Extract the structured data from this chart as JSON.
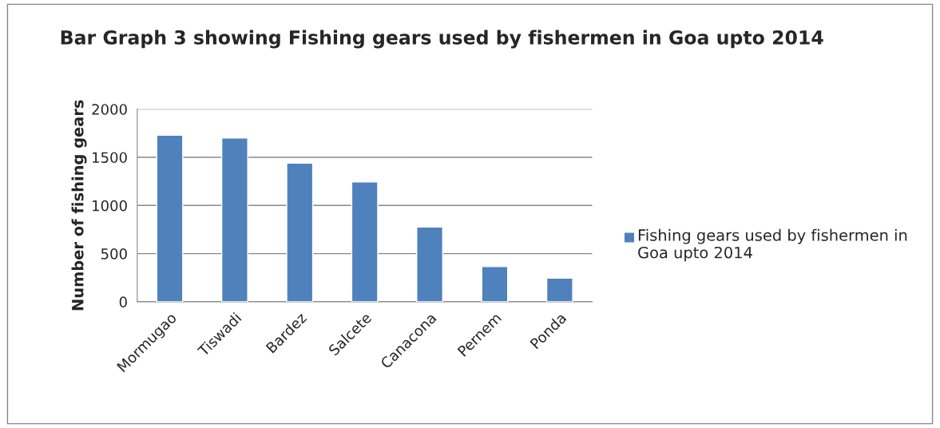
{
  "chart_data": {
    "type": "bar",
    "title": "Bar Graph 3 showing Fishing gears used by fishermen in Goa upto 2014",
    "ylabel": "Number of fishing gears",
    "categories": [
      "Mormugao",
      "Tiswadi",
      "Bardez",
      "Salcete",
      "Canacona",
      "Pernem",
      "Ponda"
    ],
    "series": [
      {
        "name": "Fishing gears used by fishermen in Goa upto 2014",
        "color": "#4f81bd",
        "values": [
          1730,
          1700,
          1440,
          1245,
          775,
          365,
          245
        ]
      }
    ],
    "ylim": [
      0,
      2000
    ],
    "yticks": [
      0,
      500,
      1000,
      1500,
      2000
    ],
    "grid": "y",
    "legend": "right"
  }
}
